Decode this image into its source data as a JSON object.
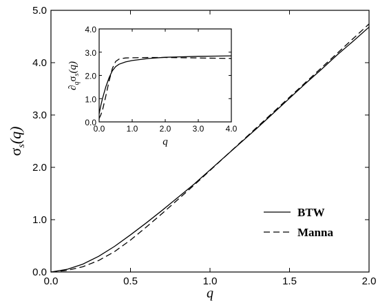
{
  "chart_data": [
    {
      "type": "line",
      "xlabel": "q",
      "ylabel": "σs(q)",
      "xlim": [
        0.0,
        2.0
      ],
      "ylim": [
        0.0,
        5.0
      ],
      "xticks": [
        "0.0",
        "0.5",
        "1.0",
        "1.5",
        "2.0"
      ],
      "yticks": [
        "0.0",
        "1.0",
        "2.0",
        "3.0",
        "4.0",
        "5.0"
      ],
      "legend_position": "bottom-right",
      "grid": false,
      "series": [
        {
          "name": "BTW",
          "style": "solid",
          "x": [
            0.0,
            0.1,
            0.2,
            0.3,
            0.4,
            0.5,
            0.6,
            0.7,
            0.8,
            0.9,
            1.0,
            1.1,
            1.2,
            1.3,
            1.4,
            1.5,
            1.6,
            1.7,
            1.8,
            1.9,
            2.0
          ],
          "y": [
            0.0,
            0.05,
            0.15,
            0.3,
            0.49,
            0.71,
            0.94,
            1.18,
            1.43,
            1.68,
            1.95,
            2.22,
            2.49,
            2.76,
            3.04,
            3.32,
            3.6,
            3.87,
            4.15,
            4.41,
            4.68
          ]
        },
        {
          "name": "Manna",
          "style": "dashed",
          "x": [
            0.0,
            0.1,
            0.2,
            0.3,
            0.4,
            0.5,
            0.6,
            0.7,
            0.8,
            0.9,
            1.0,
            1.1,
            1.2,
            1.3,
            1.4,
            1.5,
            1.6,
            1.7,
            1.8,
            1.9,
            2.0
          ],
          "y": [
            0.0,
            0.03,
            0.1,
            0.22,
            0.39,
            0.61,
            0.86,
            1.12,
            1.39,
            1.66,
            1.94,
            2.22,
            2.5,
            2.78,
            3.06,
            3.34,
            3.62,
            3.9,
            4.18,
            4.46,
            4.74
          ]
        }
      ]
    },
    {
      "type": "line",
      "xlabel": "q",
      "ylabel": "∂qσs(q)",
      "xlim": [
        0.0,
        4.0
      ],
      "ylim": [
        0.0,
        4.0
      ],
      "xticks": [
        "0.0",
        "1.0",
        "2.0",
        "3.0",
        "4.0"
      ],
      "yticks": [
        "0.0",
        "1.0",
        "2.0",
        "3.0",
        "4.0"
      ],
      "grid": false,
      "series": [
        {
          "name": "BTW",
          "style": "solid",
          "x": [
            0.0,
            0.05,
            0.1,
            0.2,
            0.3,
            0.4,
            0.5,
            0.6,
            0.8,
            1.0,
            1.5,
            2.0,
            2.5,
            3.0,
            3.5,
            4.0
          ],
          "y": [
            0.35,
            0.7,
            1.0,
            1.5,
            1.9,
            2.2,
            2.38,
            2.48,
            2.58,
            2.64,
            2.73,
            2.78,
            2.8,
            2.82,
            2.83,
            2.84
          ]
        },
        {
          "name": "Manna",
          "style": "dashed",
          "x": [
            0.0,
            0.05,
            0.1,
            0.2,
            0.3,
            0.4,
            0.5,
            0.6,
            0.7,
            0.8,
            1.0,
            1.5,
            2.0,
            2.5,
            3.0,
            3.5,
            4.0
          ],
          "y": [
            0.15,
            0.3,
            0.5,
            1.1,
            1.75,
            2.3,
            2.6,
            2.7,
            2.73,
            2.75,
            2.76,
            2.77,
            2.77,
            2.76,
            2.75,
            2.74,
            2.73
          ]
        }
      ]
    }
  ],
  "main": {
    "xlabel": "q",
    "ylabel_main": "σ",
    "ylabel_sub": "s",
    "ylabel_arg": "(q)",
    "legend": [
      {
        "label": "BTW"
      },
      {
        "label": "Manna"
      }
    ]
  },
  "inset": {
    "xlabel": "q",
    "ylabel_prefix": "∂",
    "ylabel_prefix_sub": "q",
    "ylabel_main": "σ",
    "ylabel_sub": "s",
    "ylabel_arg": "(q)"
  }
}
